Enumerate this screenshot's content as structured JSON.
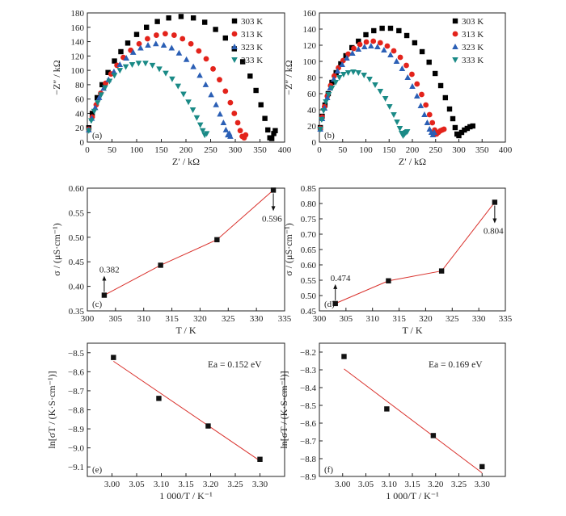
{
  "chart_data": [
    {
      "id": "a",
      "type": "scatter",
      "panel_label": "(a)",
      "xlabel": "Z′ / kΩ",
      "ylabel": "−Z″ / kΩ",
      "xlim": [
        0,
        400
      ],
      "ylim": [
        0,
        180
      ],
      "xticks": [
        0,
        50,
        100,
        150,
        200,
        250,
        300,
        350,
        400
      ],
      "yticks": [
        0,
        20,
        40,
        60,
        80,
        100,
        120,
        140,
        160,
        180
      ],
      "legend": "top-right",
      "series": [
        {
          "name": "303 K",
          "color": "#000000",
          "marker": "square",
          "x": [
            3,
            10,
            20,
            30,
            42,
            55,
            68,
            82,
            100,
            120,
            142,
            165,
            190,
            215,
            238,
            260,
            280,
            298,
            315,
            330,
            342,
            352,
            360,
            366,
            370,
            374,
            378,
            381
          ],
          "y": [
            20,
            40,
            62,
            80,
            97,
            113,
            126,
            138,
            150,
            160,
            168,
            173,
            175,
            173,
            167,
            157,
            145,
            130,
            112,
            92,
            72,
            52,
            33,
            17,
            6,
            5,
            12,
            16
          ]
        },
        {
          "name": "313 K",
          "color": "#e3231b",
          "marker": "circle",
          "x": [
            3,
            10,
            18,
            27,
            37,
            48,
            60,
            73,
            88,
            105,
            122,
            140,
            158,
            176,
            193,
            210,
            226,
            241,
            255,
            268,
            280,
            290,
            298,
            305,
            310,
            314,
            318,
            321
          ],
          "y": [
            18,
            35,
            52,
            68,
            82,
            95,
            107,
            118,
            128,
            137,
            144,
            149,
            151,
            149,
            144,
            137,
            127,
            116,
            102,
            87,
            71,
            55,
            40,
            27,
            16,
            8,
            6,
            10
          ]
        },
        {
          "name": "323 K",
          "color": "#2b5fb5",
          "marker": "triangle-up",
          "x": [
            3,
            9,
            16,
            24,
            33,
            43,
            54,
            66,
            79,
            93,
            108,
            123,
            139,
            155,
            171,
            186,
            201,
            215,
            228,
            240,
            251,
            261,
            269,
            276,
            281,
            285,
            288,
            290
          ],
          "y": [
            17,
            33,
            48,
            62,
            75,
            87,
            98,
            108,
            117,
            125,
            131,
            135,
            137,
            135,
            131,
            124,
            115,
            105,
            93,
            80,
            66,
            52,
            39,
            27,
            17,
            10,
            12,
            8
          ]
        },
        {
          "name": "333 K",
          "color": "#1a8a86",
          "marker": "triangle-down",
          "x": [
            3,
            8,
            14,
            21,
            28,
            36,
            45,
            55,
            66,
            78,
            91,
            104,
            118,
            132,
            146,
            159,
            172,
            184,
            195,
            205,
            214,
            222,
            229,
            234,
            238,
            242
          ],
          "y": [
            16,
            30,
            43,
            55,
            66,
            76,
            85,
            93,
            100,
            105,
            108,
            110,
            110,
            107,
            102,
            96,
            88,
            78,
            67,
            56,
            45,
            34,
            24,
            16,
            10,
            12
          ]
        }
      ]
    },
    {
      "id": "b",
      "type": "scatter",
      "panel_label": "(b)",
      "xlabel": "Z′ / kΩ",
      "ylabel": "−Z″ / kΩ",
      "xlim": [
        0,
        400
      ],
      "ylim": [
        0,
        160
      ],
      "xticks": [
        0,
        50,
        100,
        150,
        200,
        250,
        300,
        350,
        400
      ],
      "yticks": [
        0,
        20,
        40,
        60,
        80,
        100,
        120,
        140,
        160
      ],
      "legend": "top-right",
      "series": [
        {
          "name": "303 K",
          "color": "#000000",
          "marker": "square",
          "x": [
            2,
            6,
            12,
            19,
            27,
            36,
            46,
            57,
            70,
            84,
            100,
            117,
            135,
            153,
            171,
            188,
            205,
            221,
            236,
            249,
            261,
            271,
            280,
            287,
            292,
            296,
            300,
            306,
            312,
            318,
            324,
            330
          ],
          "y": [
            18,
            32,
            46,
            60,
            74,
            86,
            97,
            107,
            117,
            125,
            133,
            138,
            141,
            141,
            138,
            132,
            123,
            112,
            99,
            85,
            70,
            55,
            41,
            29,
            18,
            10,
            8,
            12,
            15,
            17,
            19,
            20
          ]
        },
        {
          "name": "313 K",
          "color": "#e3231b",
          "marker": "circle",
          "x": [
            2,
            6,
            11,
            17,
            24,
            32,
            41,
            51,
            62,
            74,
            87,
            101,
            116,
            131,
            146,
            160,
            174,
            187,
            199,
            210,
            220,
            229,
            237,
            243,
            248,
            252,
            256,
            260,
            264,
            268
          ],
          "y": [
            17,
            31,
            44,
            57,
            70,
            82,
            92,
            101,
            109,
            116,
            121,
            124,
            125,
            123,
            119,
            113,
            105,
            95,
            84,
            72,
            59,
            46,
            34,
            24,
            15,
            10,
            12,
            14,
            15,
            16
          ]
        },
        {
          "name": "323 K",
          "color": "#2b5fb5",
          "marker": "triangle-up",
          "x": [
            2,
            6,
            11,
            17,
            23,
            31,
            39,
            49,
            59,
            71,
            84,
            97,
            111,
            125,
            139,
            153,
            166,
            178,
            190,
            200,
            210,
            218,
            226,
            232,
            237,
            241,
            244,
            247
          ],
          "y": [
            16,
            29,
            42,
            55,
            67,
            78,
            88,
            96,
            104,
            110,
            115,
            118,
            119,
            118,
            114,
            108,
            100,
            91,
            80,
            69,
            57,
            45,
            34,
            24,
            16,
            12,
            9,
            12
          ]
        },
        {
          "name": "333 K",
          "color": "#1a8a86",
          "marker": "triangle-down",
          "x": [
            2,
            5,
            9,
            14,
            20,
            27,
            35,
            43,
            52,
            62,
            73,
            84,
            96,
            108,
            120,
            131,
            142,
            151,
            160,
            167,
            173,
            177,
            180,
            183,
            186,
            189
          ],
          "y": [
            16,
            28,
            39,
            50,
            59,
            67,
            74,
            80,
            84,
            86,
            87,
            86,
            83,
            78,
            71,
            63,
            54,
            44,
            34,
            25,
            17,
            11,
            8,
            10,
            12,
            13
          ]
        }
      ]
    },
    {
      "id": "c",
      "type": "line",
      "panel_label": "(c)",
      "xlabel": "T / K",
      "ylabel": "σ / (μS·cm⁻¹)",
      "xlim": [
        300,
        335
      ],
      "ylim": [
        0.35,
        0.6
      ],
      "xticks": [
        300,
        305,
        310,
        315,
        320,
        325,
        330,
        335
      ],
      "yticks": [
        0.35,
        0.4,
        0.45,
        0.5,
        0.55,
        0.6
      ],
      "line_color": "#d9302b",
      "x": [
        303,
        313,
        323,
        333
      ],
      "y": [
        0.382,
        0.443,
        0.495,
        0.596
      ],
      "annotations": [
        {
          "text": "0.382",
          "x": 303,
          "y": 0.382,
          "arrow": "up"
        },
        {
          "text": "0.596",
          "x": 333,
          "y": 0.596,
          "arrow": "down"
        }
      ]
    },
    {
      "id": "d",
      "type": "line",
      "panel_label": "(d)",
      "xlabel": "T / K",
      "ylabel": "σ / (μS·cm⁻¹)",
      "xlim": [
        300,
        335
      ],
      "ylim": [
        0.45,
        0.85
      ],
      "xticks": [
        300,
        305,
        310,
        315,
        320,
        325,
        330,
        335
      ],
      "yticks": [
        0.45,
        0.5,
        0.55,
        0.6,
        0.65,
        0.7,
        0.75,
        0.8,
        0.85
      ],
      "line_color": "#d9302b",
      "x": [
        303,
        313,
        323,
        333
      ],
      "y": [
        0.474,
        0.548,
        0.58,
        0.804
      ],
      "annotations": [
        {
          "text": "0.474",
          "x": 303,
          "y": 0.474,
          "arrow": "up"
        },
        {
          "text": "0.804",
          "x": 333,
          "y": 0.804,
          "arrow": "down"
        }
      ]
    },
    {
      "id": "e",
      "type": "scatter",
      "panel_label": "(e)",
      "xlabel": "1 000/T / K⁻¹",
      "ylabel": "ln[σT / (K·S·cm⁻¹)]",
      "xlim": [
        2.95,
        3.35
      ],
      "ylim": [
        -9.15,
        -8.45
      ],
      "xticks": [
        3.0,
        3.05,
        3.1,
        3.15,
        3.2,
        3.25,
        3.3
      ],
      "yticks": [
        -8.5,
        -8.6,
        -8.7,
        -8.8,
        -8.9,
        -9.0,
        -9.1
      ],
      "ea_text": "Ea = 0.152 eV",
      "line_color": "#d9302b",
      "x": [
        3.003,
        3.095,
        3.195,
        3.3
      ],
      "y": [
        -8.525,
        -8.74,
        -8.885,
        -9.06
      ],
      "fit_x": [
        3.003,
        3.3
      ],
      "fit_y": [
        -8.545,
        -9.068
      ]
    },
    {
      "id": "f",
      "type": "scatter",
      "panel_label": "(f)",
      "xlabel": "1 000/T / K⁻¹",
      "ylabel": "ln[σT / (K·S·cm⁻¹)]",
      "xlim": [
        2.95,
        3.35
      ],
      "ylim": [
        -8.9,
        -8.15
      ],
      "xticks": [
        3.0,
        3.05,
        3.1,
        3.15,
        3.2,
        3.25,
        3.3
      ],
      "yticks": [
        -8.2,
        -8.3,
        -8.4,
        -8.5,
        -8.6,
        -8.7,
        -8.8,
        -8.9
      ],
      "ea_text": "Ea = 0.169 eV",
      "line_color": "#d9302b",
      "x": [
        3.003,
        3.095,
        3.195,
        3.3
      ],
      "y": [
        -8.225,
        -8.52,
        -8.67,
        -8.845
      ],
      "fit_x": [
        3.003,
        3.3
      ],
      "fit_y": [
        -8.295,
        -8.88
      ]
    }
  ]
}
